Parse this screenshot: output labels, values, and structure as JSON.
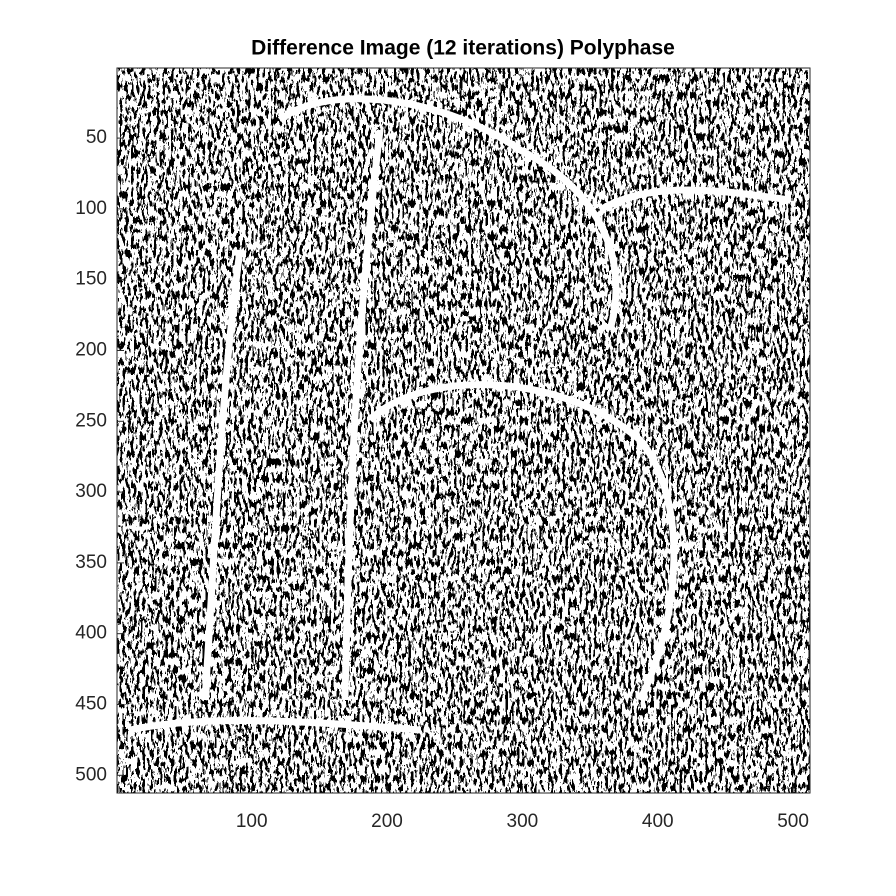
{
  "chart_data": {
    "type": "image",
    "title": "Difference Image (12 iterations) Polyphase",
    "xlim": [
      0.5,
      512.5
    ],
    "ylim": [
      0.5,
      512.5
    ],
    "ydir": "reverse",
    "xticks": [
      100,
      200,
      300,
      400,
      500
    ],
    "yticks": [
      50,
      100,
      150,
      200,
      250,
      300,
      350,
      400,
      450,
      500
    ]
  }
}
